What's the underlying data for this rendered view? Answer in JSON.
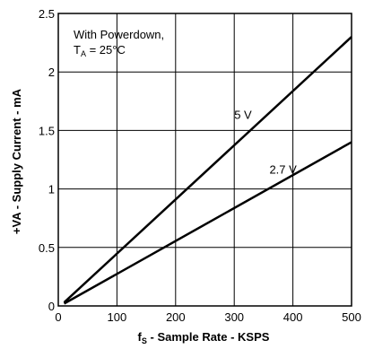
{
  "chart_data": {
    "type": "line",
    "xlabel_main": "f",
    "xlabel_sub": "S",
    "xlabel_rest": " - Sample Rate - KSPS",
    "ylabel": "+VA - Supply Current - mA",
    "xlim": [
      0,
      500
    ],
    "ylim": [
      0,
      2.5
    ],
    "xticks": [
      0,
      100,
      200,
      300,
      400,
      500
    ],
    "xtick_labels": [
      "0",
      "100",
      "200",
      "300",
      "400",
      "500"
    ],
    "yticks": [
      0,
      0.5,
      1,
      1.5,
      2,
      2.5
    ],
    "ytick_labels": [
      "0",
      "0.5",
      "1",
      "1.5",
      "2",
      "2.5"
    ],
    "grid": true,
    "annotation_line1": "With Powerdown,",
    "annotation_line2_main": "T",
    "annotation_line2_sub": "A",
    "annotation_line2_rest": " = 25°C",
    "series": [
      {
        "name": "5 V",
        "x": [
          10,
          500
        ],
        "y": [
          0.03,
          2.3
        ],
        "label_at": [
          300,
          1.6
        ]
      },
      {
        "name": "2.7 V",
        "x": [
          10,
          500
        ],
        "y": [
          0.02,
          1.4
        ],
        "label_at": [
          360,
          1.13
        ]
      }
    ]
  }
}
